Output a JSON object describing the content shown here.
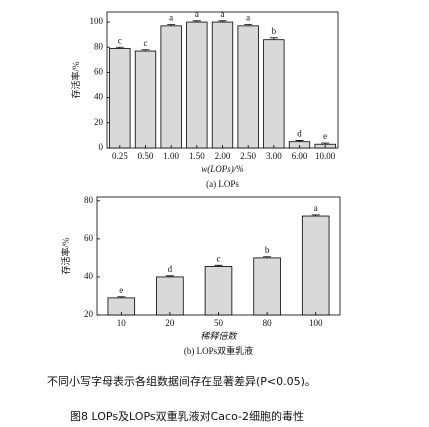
{
  "chart_data": [
    {
      "type": "bar",
      "y_label": "存活率/%",
      "x_label": "w(LOPs)/%",
      "subtitle": "(a) LOPs",
      "categories": [
        "0.25",
        "0.50",
        "1.00",
        "1.50",
        "2.00",
        "2.50",
        "3.00",
        "6.00",
        "10.00"
      ],
      "values": [
        79,
        77,
        97,
        100,
        100,
        97,
        86,
        5,
        3
      ],
      "errors": [
        1,
        1,
        1,
        1,
        1,
        1,
        1.5,
        1,
        1
      ],
      "annotations": [
        "c",
        "c",
        "a",
        "a",
        "a",
        "a",
        "b",
        "d",
        "e"
      ],
      "color": "#d9d9d9",
      "ylim": [
        0,
        108
      ],
      "yticks": [
        0,
        20,
        40,
        60,
        80,
        100
      ]
    },
    {
      "type": "bar",
      "y_label": "存活率/%",
      "x_label": "稀释倍数",
      "subtitle": "(b) LOPs双重乳液",
      "categories": [
        "10",
        "20",
        "50",
        "80",
        "100"
      ],
      "values": [
        29,
        40,
        45.5,
        50,
        72
      ],
      "errors": [
        0.6,
        0.6,
        0.6,
        0.6,
        0.6
      ],
      "annotations": [
        "e",
        "d",
        "c",
        "b",
        "a"
      ],
      "color": "#d9d9d9",
      "ylim": [
        20,
        82
      ],
      "yticks": [
        20,
        40,
        60,
        80
      ]
    }
  ],
  "note": "不同小写字母表示各组数据间存在显著差异(P<0.05)。",
  "figure_caption": "图8 LOPs及LOPs双重乳液对Caco-2细胞的毒性"
}
